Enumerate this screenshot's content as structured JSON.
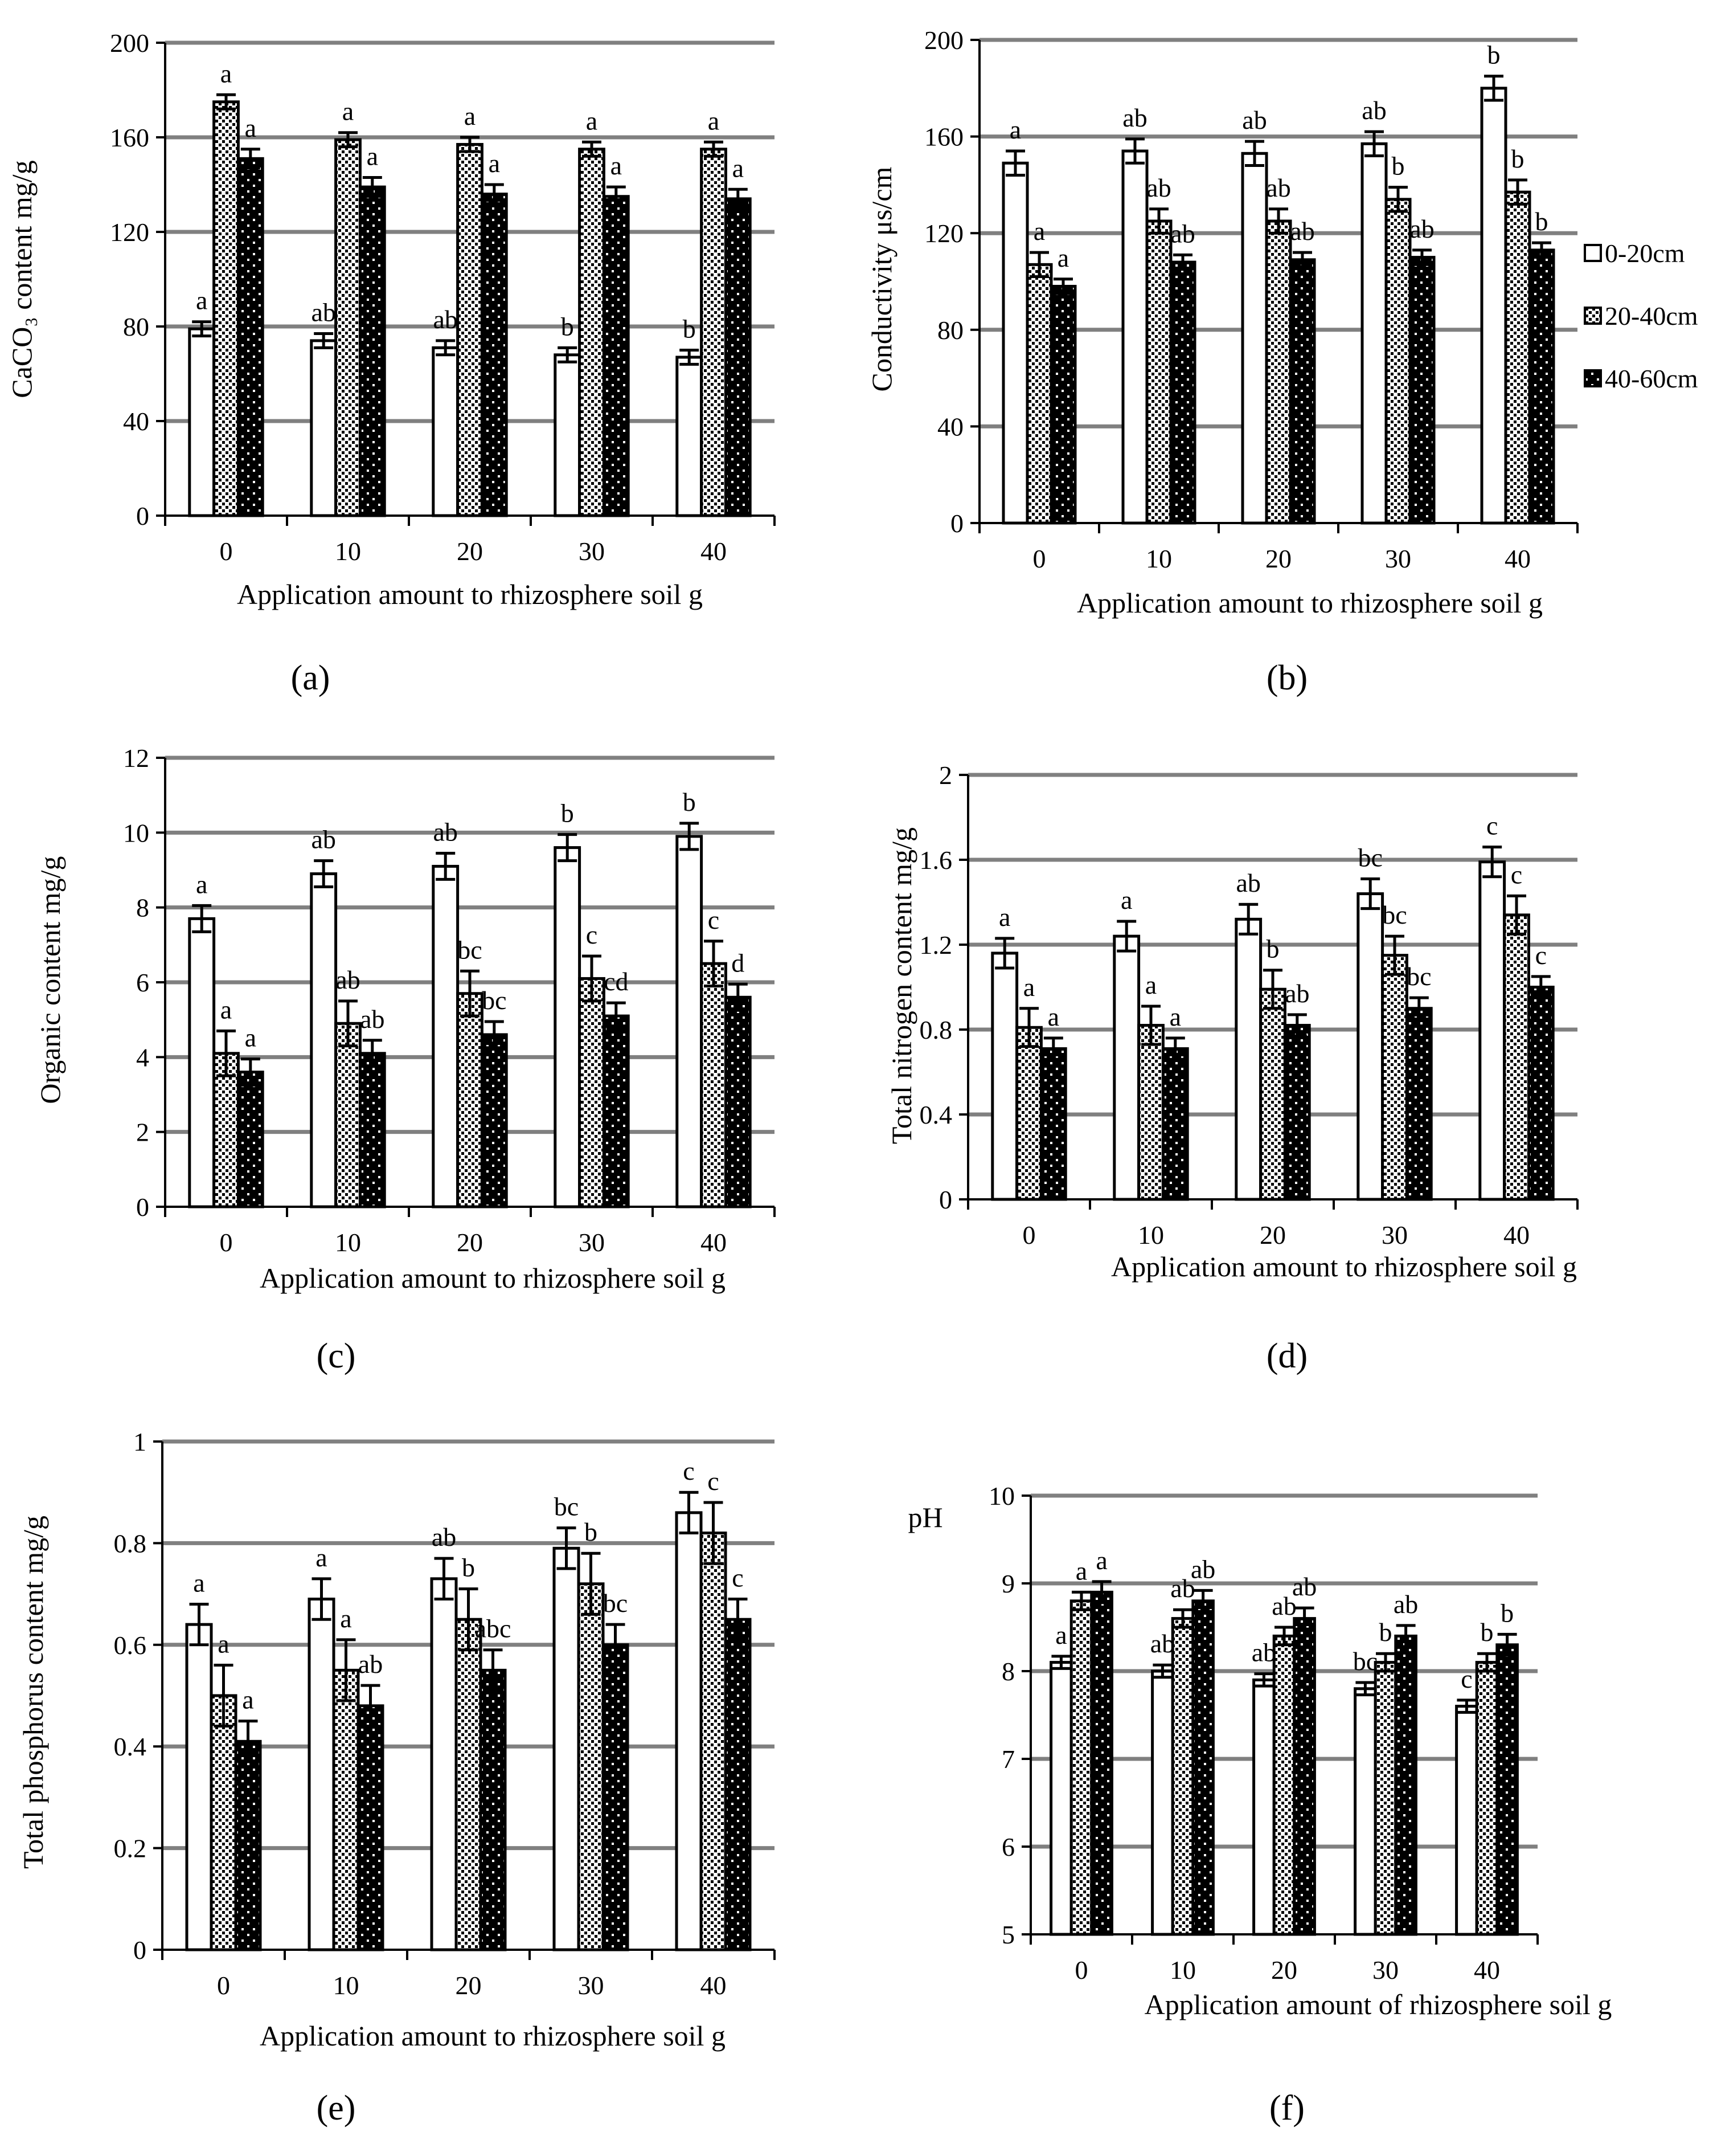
{
  "colors": {
    "series_1_fill": "#ffffff",
    "series_2_fill": "#ffffff",
    "series_3_fill": "#000000",
    "stroke": "#000000",
    "gridline": "#808080"
  },
  "legend": {
    "items": [
      {
        "label": "0-20cm",
        "pattern": "white"
      },
      {
        "label": "20-40cm",
        "pattern": "dots-on-white"
      },
      {
        "label": "40-60cm",
        "pattern": "dots-on-black"
      }
    ]
  },
  "chart_data": [
    {
      "type": "bar",
      "panel_label": "(a)",
      "title": "",
      "ylabel": "CaCO₃ content mg/g",
      "xlabel": "Application amount to rhizosphere soil  g",
      "ylim": [
        0,
        200
      ],
      "yticks": [
        0,
        40,
        80,
        120,
        160,
        200
      ],
      "ytick_labels": [
        "0",
        "40",
        "80",
        "120",
        "160",
        "200"
      ],
      "categories": [
        "0",
        "10",
        "20",
        "30",
        "40"
      ],
      "series": [
        {
          "name": "0-20cm",
          "values": [
            79,
            74,
            71,
            68,
            67
          ],
          "errors": [
            3,
            3,
            3,
            3,
            3
          ],
          "letters": [
            "a",
            "ab",
            "ab",
            "b",
            "b"
          ]
        },
        {
          "name": "20-40cm",
          "values": [
            175,
            159,
            157,
            155,
            155
          ],
          "errors": [
            3,
            3,
            3,
            3,
            3
          ],
          "letters": [
            "a",
            "a",
            "a",
            "a",
            "a"
          ]
        },
        {
          "name": "40-60cm",
          "values": [
            151,
            139,
            136,
            135,
            134
          ],
          "errors": [
            4,
            4,
            4,
            4,
            4
          ],
          "letters": [
            "a",
            "a",
            "a",
            "a",
            "a"
          ]
        }
      ]
    },
    {
      "type": "bar",
      "panel_label": "(b)",
      "title": "",
      "ylabel": "Conductivity μs/cm",
      "xlabel": "Application amount to rhizosphere soil  g",
      "ylim": [
        0,
        200
      ],
      "yticks": [
        0,
        40,
        80,
        120,
        160,
        200
      ],
      "ytick_labels": [
        "0",
        "40",
        "80",
        "120",
        "160",
        "200"
      ],
      "categories": [
        "0",
        "10",
        "20",
        "30",
        "40"
      ],
      "series": [
        {
          "name": "0-20cm",
          "values": [
            149,
            154,
            153,
            157,
            180
          ],
          "errors": [
            5,
            5,
            5,
            5,
            5
          ],
          "letters": [
            "a",
            "ab",
            "ab",
            "ab",
            "b"
          ]
        },
        {
          "name": "20-40cm",
          "values": [
            107,
            125,
            125,
            134,
            137
          ],
          "errors": [
            5,
            5,
            5,
            5,
            5
          ],
          "letters": [
            "a",
            "ab",
            "ab",
            "b",
            "b"
          ]
        },
        {
          "name": "40-60cm",
          "values": [
            98,
            108,
            109,
            110,
            113
          ],
          "errors": [
            3,
            3,
            3,
            3,
            3
          ],
          "letters": [
            "a",
            "ab",
            "ab",
            "ab",
            "b"
          ]
        }
      ]
    },
    {
      "type": "bar",
      "panel_label": "(c)",
      "title": "",
      "ylabel": "Organic content mg/g",
      "xlabel": "Application amount to rhizosphere soil  g",
      "ylim": [
        0,
        12
      ],
      "yticks": [
        0,
        2,
        4,
        6,
        8,
        10,
        12
      ],
      "ytick_labels": [
        "0",
        "2",
        "4",
        "6",
        "8",
        "10",
        "12"
      ],
      "categories": [
        "0",
        "10",
        "20",
        "30",
        "40"
      ],
      "series": [
        {
          "name": "0-20cm",
          "values": [
            7.7,
            8.9,
            9.1,
            9.6,
            9.9
          ],
          "errors": [
            0.35,
            0.35,
            0.35,
            0.35,
            0.35
          ],
          "letters": [
            "a",
            "ab",
            "ab",
            "b",
            "b"
          ]
        },
        {
          "name": "20-40cm",
          "values": [
            4.1,
            4.9,
            5.7,
            6.1,
            6.5
          ],
          "errors": [
            0.6,
            0.6,
            0.6,
            0.6,
            0.6
          ],
          "letters": [
            "a",
            "ab",
            "bc",
            "c",
            "c"
          ]
        },
        {
          "name": "40-60cm",
          "values": [
            3.6,
            4.1,
            4.6,
            5.1,
            5.6
          ],
          "errors": [
            0.35,
            0.35,
            0.35,
            0.35,
            0.35
          ],
          "letters": [
            "a",
            "ab",
            "bc",
            "cd",
            "d"
          ]
        }
      ]
    },
    {
      "type": "bar",
      "panel_label": "(d)",
      "title": "",
      "ylabel": "Total nitrogen content mg/g",
      "xlabel": "Application amount to rhizosphere soil  g",
      "ylim": [
        0,
        2
      ],
      "yticks": [
        0,
        0.4,
        0.8,
        1.2,
        1.6,
        2
      ],
      "ytick_labels": [
        "0",
        "0.4",
        "0.8",
        "1.2",
        "1.6",
        "2"
      ],
      "categories": [
        "0",
        "10",
        "20",
        "30",
        "40"
      ],
      "series": [
        {
          "name": "0-20cm",
          "values": [
            1.16,
            1.24,
            1.32,
            1.44,
            1.59
          ],
          "errors": [
            0.07,
            0.07,
            0.07,
            0.07,
            0.07
          ],
          "letters": [
            "a",
            "a",
            "ab",
            "bc",
            "c"
          ]
        },
        {
          "name": "20-40cm",
          "values": [
            0.81,
            0.82,
            0.99,
            1.15,
            1.34
          ],
          "errors": [
            0.09,
            0.09,
            0.09,
            0.09,
            0.09
          ],
          "letters": [
            "a",
            "a",
            "b",
            "bc",
            "c"
          ]
        },
        {
          "name": "40-60cm",
          "values": [
            0.71,
            0.71,
            0.82,
            0.9,
            1.0
          ],
          "errors": [
            0.05,
            0.05,
            0.05,
            0.05,
            0.05
          ],
          "letters": [
            "a",
            "a",
            "ab",
            "bc",
            "c"
          ]
        }
      ]
    },
    {
      "type": "bar",
      "panel_label": "(e)",
      "title": "",
      "ylabel": "Total phosphorus content mg/g",
      "xlabel": "Application amount to rhizosphere soil  g",
      "ylim": [
        0,
        1
      ],
      "yticks": [
        0,
        0.2,
        0.4,
        0.6,
        0.8,
        1
      ],
      "ytick_labels": [
        "0",
        "0.2",
        "0.4",
        "0.6",
        "0.8",
        "1"
      ],
      "categories": [
        "0",
        "10",
        "20",
        "30",
        "40"
      ],
      "series": [
        {
          "name": "0-20cm",
          "values": [
            0.64,
            0.69,
            0.73,
            0.79,
            0.86
          ],
          "errors": [
            0.04,
            0.04,
            0.04,
            0.04,
            0.04
          ],
          "letters": [
            "a",
            "a",
            "ab",
            "bc",
            "c"
          ]
        },
        {
          "name": "20-40cm",
          "values": [
            0.5,
            0.55,
            0.65,
            0.72,
            0.82
          ],
          "errors": [
            0.06,
            0.06,
            0.06,
            0.06,
            0.06
          ],
          "letters": [
            "a",
            "a",
            "b",
            "b",
            "c"
          ]
        },
        {
          "name": "40-60cm",
          "values": [
            0.41,
            0.48,
            0.55,
            0.6,
            0.65
          ],
          "errors": [
            0.04,
            0.04,
            0.04,
            0.04,
            0.04
          ],
          "letters": [
            "a",
            "ab",
            "abc",
            "bc",
            "c"
          ]
        }
      ]
    },
    {
      "type": "bar",
      "panel_label": "(f)",
      "title": "",
      "ylabel": "pH",
      "xlabel": "Application amount of rhizosphere soil  g",
      "ylim": [
        5,
        10
      ],
      "yticks": [
        5,
        6,
        7,
        8,
        9,
        10
      ],
      "ytick_labels": [
        "5",
        "6",
        "7",
        "8",
        "9",
        "10"
      ],
      "categories": [
        "0",
        "10",
        "20",
        "30",
        "40"
      ],
      "series": [
        {
          "name": "0-20cm",
          "values": [
            8.1,
            8.0,
            7.9,
            7.8,
            7.6
          ],
          "errors": [
            0.07,
            0.07,
            0.07,
            0.07,
            0.07
          ],
          "letters": [
            "a",
            "ab",
            "ab",
            "bc",
            "c"
          ]
        },
        {
          "name": "20-40cm",
          "values": [
            8.8,
            8.6,
            8.4,
            8.1,
            8.1
          ],
          "errors": [
            0.1,
            0.1,
            0.1,
            0.1,
            0.1
          ],
          "letters": [
            "a",
            "ab",
            "ab",
            "b",
            "b"
          ]
        },
        {
          "name": "40-60cm",
          "values": [
            8.9,
            8.8,
            8.6,
            8.4,
            8.3
          ],
          "errors": [
            0.12,
            0.12,
            0.12,
            0.12,
            0.12
          ],
          "letters": [
            "a",
            "ab",
            "ab",
            "ab",
            "b"
          ]
        }
      ]
    }
  ]
}
